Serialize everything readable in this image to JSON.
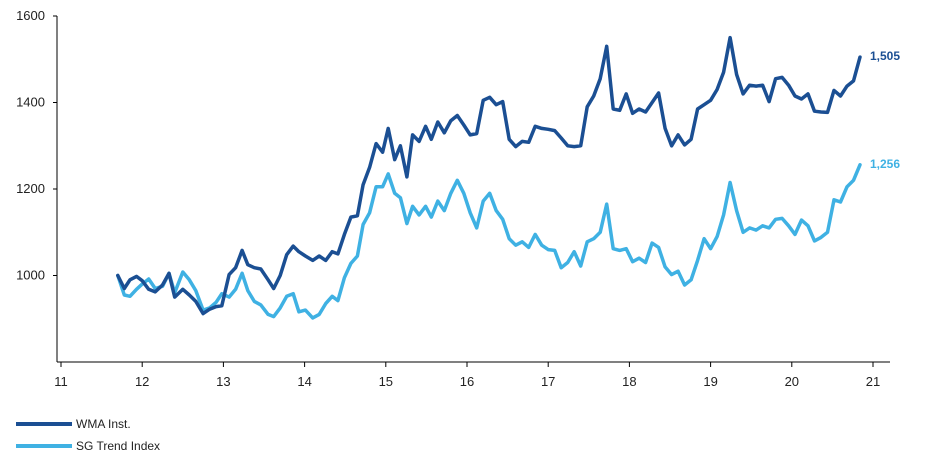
{
  "chart_data": {
    "type": "line",
    "title": "",
    "xlabel": "",
    "ylabel": "",
    "xlim": [
      11,
      21.3
    ],
    "ylim": [
      800,
      1600
    ],
    "x_ticks": [
      "11",
      "12",
      "13",
      "14",
      "15",
      "16",
      "17",
      "18",
      "19",
      "20",
      "21"
    ],
    "y_ticks": [
      "1000",
      "1200",
      "1400",
      "1600"
    ],
    "grid": false,
    "legend_position": "bottom-left",
    "series": [
      {
        "name": "WMA Inst.",
        "color": "#1b4f93",
        "end_label": "1,505",
        "points": [
          [
            11.7,
            1000
          ],
          [
            11.78,
            970
          ],
          [
            11.85,
            990
          ],
          [
            11.93,
            998
          ],
          [
            12.0,
            988
          ],
          [
            12.08,
            968
          ],
          [
            12.16,
            962
          ],
          [
            12.25,
            978
          ],
          [
            12.33,
            1005
          ],
          [
            12.4,
            950
          ],
          [
            12.5,
            968
          ],
          [
            12.58,
            955
          ],
          [
            12.66,
            940
          ],
          [
            12.75,
            912
          ],
          [
            12.83,
            922
          ],
          [
            12.91,
            928
          ],
          [
            12.98,
            930
          ],
          [
            13.07,
            1002
          ],
          [
            13.15,
            1018
          ],
          [
            13.23,
            1058
          ],
          [
            13.3,
            1025
          ],
          [
            13.38,
            1018
          ],
          [
            13.46,
            1015
          ],
          [
            13.55,
            990
          ],
          [
            13.62,
            970
          ],
          [
            13.7,
            1000
          ],
          [
            13.78,
            1048
          ],
          [
            13.86,
            1068
          ],
          [
            13.93,
            1055
          ],
          [
            14.01,
            1045
          ],
          [
            14.1,
            1035
          ],
          [
            14.18,
            1045
          ],
          [
            14.26,
            1035
          ],
          [
            14.34,
            1055
          ],
          [
            14.41,
            1050
          ],
          [
            14.49,
            1095
          ],
          [
            14.57,
            1135
          ],
          [
            14.65,
            1138
          ],
          [
            14.72,
            1210
          ],
          [
            14.8,
            1250
          ],
          [
            14.88,
            1305
          ],
          [
            14.96,
            1285
          ],
          [
            15.03,
            1340
          ],
          [
            15.11,
            1268
          ],
          [
            15.18,
            1300
          ],
          [
            15.26,
            1228
          ],
          [
            15.33,
            1325
          ],
          [
            15.41,
            1310
          ],
          [
            15.49,
            1345
          ],
          [
            15.56,
            1315
          ],
          [
            15.64,
            1355
          ],
          [
            15.72,
            1330
          ],
          [
            15.8,
            1358
          ],
          [
            15.88,
            1370
          ],
          [
            15.96,
            1348
          ],
          [
            16.04,
            1325
          ],
          [
            16.12,
            1328
          ],
          [
            16.2,
            1405
          ],
          [
            16.28,
            1412
          ],
          [
            16.36,
            1395
          ],
          [
            16.44,
            1402
          ],
          [
            16.52,
            1315
          ],
          [
            16.6,
            1298
          ],
          [
            16.68,
            1310
          ],
          [
            16.76,
            1308
          ],
          [
            16.84,
            1345
          ],
          [
            16.92,
            1340
          ],
          [
            17.0,
            1338
          ],
          [
            17.08,
            1335
          ],
          [
            17.16,
            1318
          ],
          [
            17.24,
            1300
          ],
          [
            17.32,
            1298
          ],
          [
            17.4,
            1300
          ],
          [
            17.48,
            1390
          ],
          [
            17.56,
            1415
          ],
          [
            17.64,
            1455
          ],
          [
            17.72,
            1530
          ],
          [
            17.8,
            1385
          ],
          [
            17.88,
            1382
          ],
          [
            17.96,
            1420
          ],
          [
            18.04,
            1375
          ],
          [
            18.12,
            1385
          ],
          [
            18.2,
            1378
          ],
          [
            18.28,
            1400
          ],
          [
            18.36,
            1422
          ],
          [
            18.44,
            1340
          ],
          [
            18.52,
            1300
          ],
          [
            18.6,
            1325
          ],
          [
            18.68,
            1302
          ],
          [
            18.76,
            1315
          ],
          [
            18.84,
            1385
          ],
          [
            18.92,
            1395
          ],
          [
            19.0,
            1405
          ],
          [
            19.08,
            1430
          ],
          [
            19.16,
            1470
          ],
          [
            19.24,
            1550
          ],
          [
            19.32,
            1465
          ],
          [
            19.4,
            1420
          ],
          [
            19.48,
            1440
          ],
          [
            19.56,
            1438
          ],
          [
            19.64,
            1440
          ],
          [
            19.72,
            1402
          ],
          [
            19.8,
            1455
          ],
          [
            19.88,
            1458
          ],
          [
            19.96,
            1440
          ],
          [
            20.04,
            1415
          ],
          [
            20.12,
            1408
          ],
          [
            20.2,
            1420
          ],
          [
            20.28,
            1380
          ],
          [
            20.36,
            1378
          ],
          [
            20.44,
            1377
          ],
          [
            20.52,
            1428
          ],
          [
            20.6,
            1415
          ],
          [
            20.68,
            1438
          ],
          [
            20.76,
            1450
          ],
          [
            20.84,
            1505
          ]
        ]
      },
      {
        "name": "SG Trend Index",
        "color": "#3fb1e3",
        "end_label": "1,256",
        "points": [
          [
            11.7,
            1000
          ],
          [
            11.78,
            955
          ],
          [
            11.85,
            952
          ],
          [
            11.93,
            968
          ],
          [
            12.0,
            980
          ],
          [
            12.08,
            992
          ],
          [
            12.16,
            970
          ],
          [
            12.25,
            975
          ],
          [
            12.33,
            1005
          ],
          [
            12.4,
            960
          ],
          [
            12.5,
            1008
          ],
          [
            12.58,
            990
          ],
          [
            12.66,
            965
          ],
          [
            12.75,
            920
          ],
          [
            12.83,
            925
          ],
          [
            12.91,
            938
          ],
          [
            12.98,
            958
          ],
          [
            13.07,
            950
          ],
          [
            13.15,
            968
          ],
          [
            13.23,
            1005
          ],
          [
            13.3,
            965
          ],
          [
            13.38,
            940
          ],
          [
            13.46,
            932
          ],
          [
            13.55,
            910
          ],
          [
            13.62,
            905
          ],
          [
            13.7,
            925
          ],
          [
            13.78,
            952
          ],
          [
            13.86,
            958
          ],
          [
            13.93,
            916
          ],
          [
            14.01,
            920
          ],
          [
            14.1,
            902
          ],
          [
            14.18,
            910
          ],
          [
            14.26,
            935
          ],
          [
            14.34,
            952
          ],
          [
            14.41,
            942
          ],
          [
            14.49,
            995
          ],
          [
            14.57,
            1028
          ],
          [
            14.65,
            1045
          ],
          [
            14.72,
            1118
          ],
          [
            14.8,
            1145
          ],
          [
            14.88,
            1205
          ],
          [
            14.96,
            1205
          ],
          [
            15.03,
            1235
          ],
          [
            15.11,
            1190
          ],
          [
            15.18,
            1180
          ],
          [
            15.26,
            1120
          ],
          [
            15.33,
            1160
          ],
          [
            15.41,
            1140
          ],
          [
            15.49,
            1160
          ],
          [
            15.56,
            1135
          ],
          [
            15.64,
            1172
          ],
          [
            15.72,
            1150
          ],
          [
            15.8,
            1190
          ],
          [
            15.88,
            1220
          ],
          [
            15.96,
            1190
          ],
          [
            16.04,
            1145
          ],
          [
            16.12,
            1110
          ],
          [
            16.2,
            1172
          ],
          [
            16.28,
            1190
          ],
          [
            16.36,
            1150
          ],
          [
            16.44,
            1130
          ],
          [
            16.52,
            1085
          ],
          [
            16.6,
            1070
          ],
          [
            16.68,
            1078
          ],
          [
            16.76,
            1065
          ],
          [
            16.84,
            1095
          ],
          [
            16.92,
            1070
          ],
          [
            17.0,
            1060
          ],
          [
            17.08,
            1058
          ],
          [
            17.16,
            1018
          ],
          [
            17.24,
            1030
          ],
          [
            17.32,
            1055
          ],
          [
            17.4,
            1022
          ],
          [
            17.48,
            1078
          ],
          [
            17.56,
            1085
          ],
          [
            17.64,
            1100
          ],
          [
            17.72,
            1165
          ],
          [
            17.8,
            1062
          ],
          [
            17.88,
            1058
          ],
          [
            17.96,
            1062
          ],
          [
            18.04,
            1032
          ],
          [
            18.12,
            1040
          ],
          [
            18.2,
            1030
          ],
          [
            18.28,
            1075
          ],
          [
            18.36,
            1065
          ],
          [
            18.44,
            1020
          ],
          [
            18.52,
            1002
          ],
          [
            18.6,
            1010
          ],
          [
            18.68,
            978
          ],
          [
            18.76,
            990
          ],
          [
            18.84,
            1035
          ],
          [
            18.92,
            1085
          ],
          [
            19.0,
            1062
          ],
          [
            19.08,
            1090
          ],
          [
            19.16,
            1140
          ],
          [
            19.24,
            1215
          ],
          [
            19.32,
            1150
          ],
          [
            19.4,
            1100
          ],
          [
            19.48,
            1110
          ],
          [
            19.56,
            1105
          ],
          [
            19.64,
            1115
          ],
          [
            19.72,
            1110
          ],
          [
            19.8,
            1130
          ],
          [
            19.88,
            1132
          ],
          [
            19.96,
            1115
          ],
          [
            20.04,
            1095
          ],
          [
            20.12,
            1128
          ],
          [
            20.2,
            1115
          ],
          [
            20.28,
            1080
          ],
          [
            20.36,
            1088
          ],
          [
            20.44,
            1100
          ],
          [
            20.52,
            1175
          ],
          [
            20.6,
            1170
          ],
          [
            20.68,
            1205
          ],
          [
            20.76,
            1220
          ],
          [
            20.84,
            1256
          ]
        ]
      }
    ]
  }
}
